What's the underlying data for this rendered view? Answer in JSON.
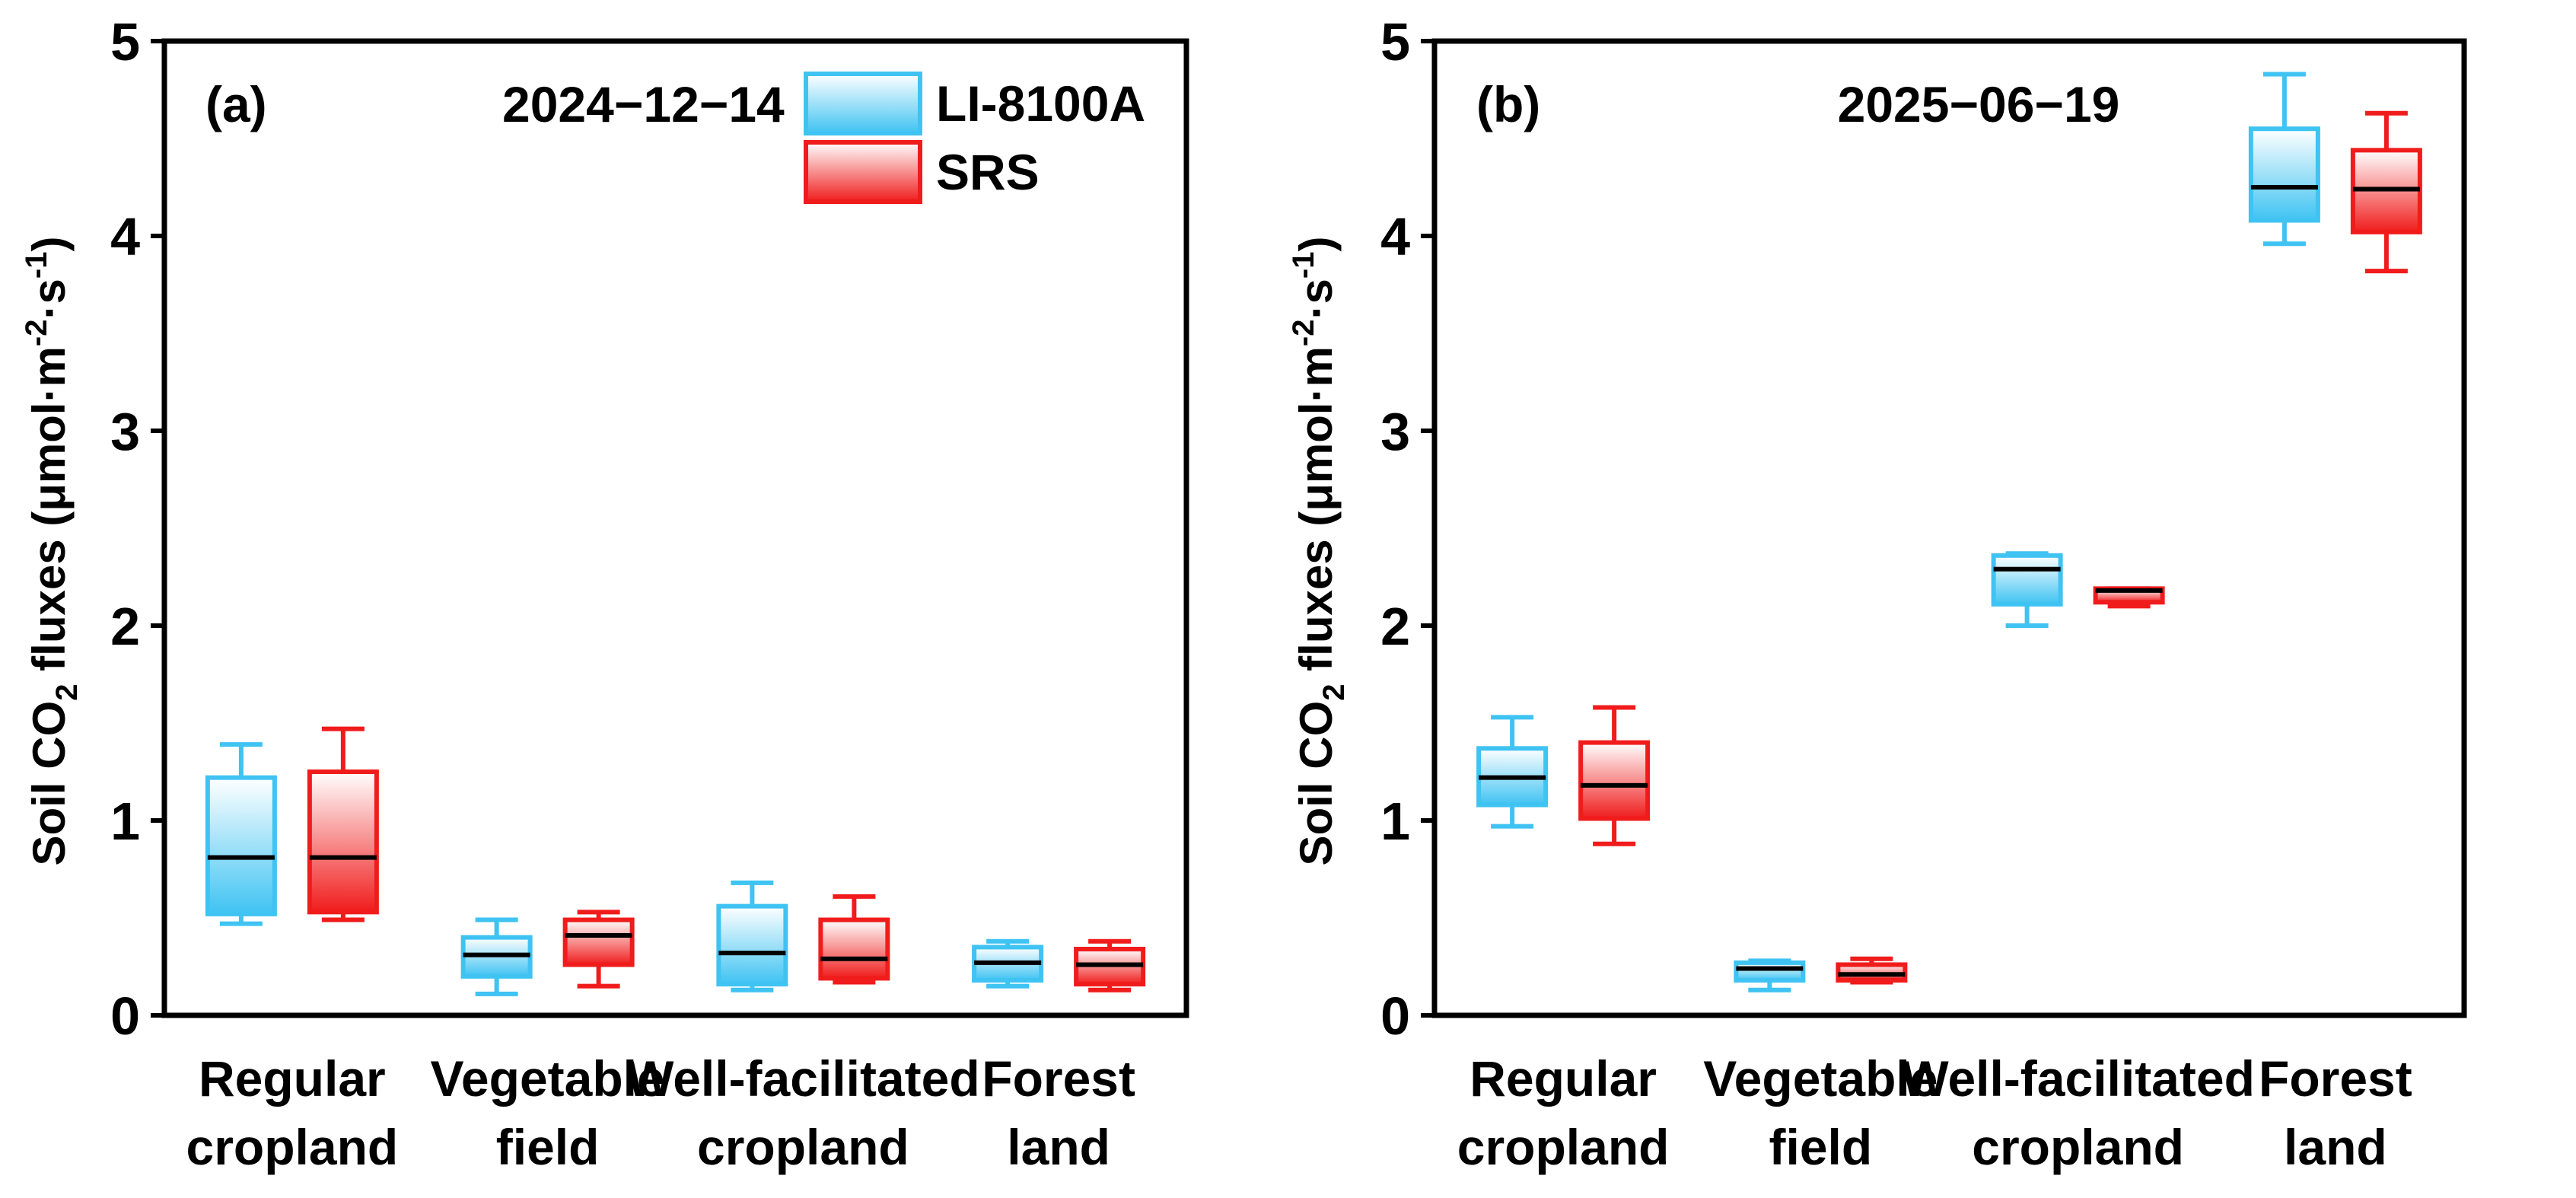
{
  "chart_data": [
    {
      "type": "box",
      "panel_label": "(a)",
      "date": "2024−12−14",
      "ylabel": {
        "main": "Soil CO",
        "sub": "2",
        "rest": " fluxes (μmol·m",
        "sup1": "-2",
        "mid": "·s",
        "sup2": "-1",
        "end": ")"
      },
      "ylim": [
        0,
        5
      ],
      "yticks": [
        "0",
        "1",
        "2",
        "3",
        "4",
        "5"
      ],
      "categories": [
        [
          "Regular",
          "cropland"
        ],
        [
          "Vegetable",
          "field"
        ],
        [
          "Well-facilitated",
          "cropland"
        ],
        [
          "Forest",
          "land"
        ]
      ],
      "series": [
        {
          "name": "LI-8100A",
          "color": "#3fc3f2",
          "boxes": [
            {
              "min": 0.47,
              "q1": 0.52,
              "median": 0.81,
              "q3": 1.22,
              "max": 1.39
            },
            {
              "min": 0.11,
              "q1": 0.2,
              "median": 0.31,
              "q3": 0.4,
              "max": 0.49
            },
            {
              "min": 0.13,
              "q1": 0.16,
              "median": 0.32,
              "q3": 0.56,
              "max": 0.68
            },
            {
              "min": 0.15,
              "q1": 0.18,
              "median": 0.27,
              "q3": 0.35,
              "max": 0.38
            }
          ]
        },
        {
          "name": "SRS",
          "color": "#f01c1c",
          "boxes": [
            {
              "min": 0.49,
              "q1": 0.53,
              "median": 0.81,
              "q3": 1.25,
              "max": 1.47
            },
            {
              "min": 0.15,
              "q1": 0.26,
              "median": 0.41,
              "q3": 0.49,
              "max": 0.53
            },
            {
              "min": 0.17,
              "q1": 0.19,
              "median": 0.29,
              "q3": 0.49,
              "max": 0.61
            },
            {
              "min": 0.13,
              "q1": 0.16,
              "median": 0.26,
              "q3": 0.34,
              "max": 0.38
            }
          ]
        }
      ],
      "legend": {
        "position": "top-right",
        "entries": [
          "LI-8100A",
          "SRS"
        ]
      }
    },
    {
      "type": "box",
      "panel_label": "(b)",
      "date": "2025−06−19",
      "ylabel": {
        "main": "Soil CO",
        "sub": "2",
        "rest": " fluxes (μmol·m",
        "sup1": "-2",
        "mid": "·s",
        "sup2": "-1",
        "end": ")"
      },
      "ylim": [
        0,
        5
      ],
      "yticks": [
        "0",
        "1",
        "2",
        "3",
        "4",
        "5"
      ],
      "categories": [
        [
          "Regular",
          "cropland"
        ],
        [
          "Vegetable",
          "field"
        ],
        [
          "Well-facilitated",
          "cropland"
        ],
        [
          "Forest",
          "land"
        ]
      ],
      "series": [
        {
          "name": "LI-8100A",
          "color": "#3fc3f2",
          "boxes": [
            {
              "min": 0.97,
              "q1": 1.08,
              "median": 1.22,
              "q3": 1.37,
              "max": 1.53
            },
            {
              "min": 0.13,
              "q1": 0.18,
              "median": 0.24,
              "q3": 0.27,
              "max": 0.28
            },
            {
              "min": 2.0,
              "q1": 2.11,
              "median": 2.29,
              "q3": 2.36,
              "max": 2.37
            },
            {
              "min": 3.96,
              "q1": 4.08,
              "median": 4.25,
              "q3": 4.55,
              "max": 4.83
            }
          ]
        },
        {
          "name": "SRS",
          "color": "#f01c1c",
          "boxes": [
            {
              "min": 0.88,
              "q1": 1.01,
              "median": 1.18,
              "q3": 1.4,
              "max": 1.58
            },
            {
              "min": 0.17,
              "q1": 0.18,
              "median": 0.21,
              "q3": 0.26,
              "max": 0.29
            },
            {
              "min": 2.1,
              "q1": 2.12,
              "median": 2.18,
              "q3": 2.19,
              "max": 2.19
            },
            {
              "min": 3.82,
              "q1": 4.02,
              "median": 4.24,
              "q3": 4.44,
              "max": 4.63
            }
          ]
        }
      ]
    }
  ]
}
